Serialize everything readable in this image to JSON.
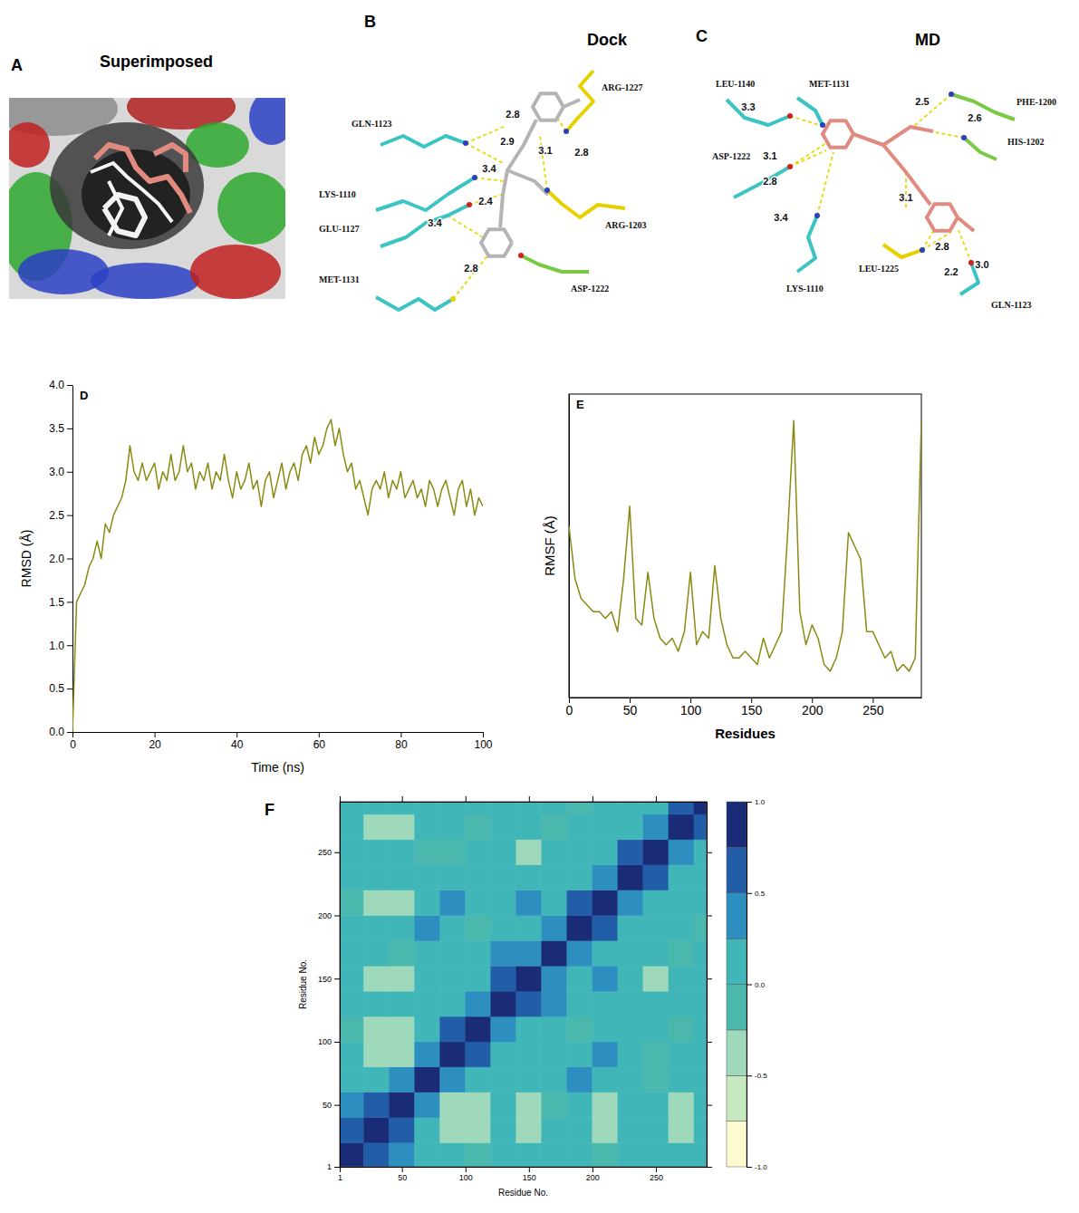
{
  "diagrams": [
    {
      "label": "A",
      "title": "Superimposed"
    },
    {
      "label": "B",
      "title": "Dock",
      "residues": [
        "GLN-1123",
        "LYS-1110",
        "GLU-1127",
        "MET-1131",
        "ARG-1227",
        "ARG-1203",
        "ASP-1222"
      ],
      "distances": [
        "2.8",
        "2.9",
        "3.4",
        "2.4",
        "3.4",
        "2.8",
        "3.1",
        "2.8"
      ]
    },
    {
      "label": "C",
      "title": "MD",
      "residues": [
        "LEU-1140",
        "MET-1131",
        "PHE-1200",
        "HIS-1202",
        "ASP-1222",
        "LYS-1110",
        "LEU-1225",
        "GLN-1123"
      ],
      "distances": [
        "3.3",
        "3.1",
        "2.8",
        "3.4",
        "2.5",
        "2.6",
        "3.1",
        "2.8",
        "2.2",
        "3.0"
      ]
    }
  ],
  "chart_data": [
    {
      "type": "line",
      "label": "D",
      "xlabel": "Time (ns)",
      "ylabel": "RMSD (Å)",
      "x": [
        0,
        1,
        2,
        3,
        4,
        5,
        6,
        7,
        8,
        9,
        10,
        11,
        12,
        13,
        14,
        15,
        16,
        17,
        18,
        19,
        20,
        21,
        22,
        23,
        24,
        25,
        26,
        27,
        28,
        29,
        30,
        31,
        32,
        33,
        34,
        35,
        36,
        37,
        38,
        39,
        40,
        41,
        42,
        43,
        44,
        45,
        46,
        47,
        48,
        49,
        50,
        51,
        52,
        53,
        54,
        55,
        56,
        57,
        58,
        59,
        60,
        61,
        62,
        63,
        64,
        65,
        66,
        67,
        68,
        69,
        70,
        71,
        72,
        73,
        74,
        75,
        76,
        77,
        78,
        79,
        80,
        81,
        82,
        83,
        84,
        85,
        86,
        87,
        88,
        89,
        90,
        91,
        92,
        93,
        94,
        95,
        96,
        97,
        98,
        99,
        100
      ],
      "series": [
        {
          "color": "#8a8a12",
          "values": [
            0.0,
            1.5,
            1.6,
            1.7,
            1.9,
            2.0,
            2.2,
            2.0,
            2.4,
            2.3,
            2.5,
            2.6,
            2.7,
            2.9,
            3.3,
            3.0,
            2.9,
            3.1,
            2.9,
            3.0,
            3.1,
            2.8,
            3.0,
            2.9,
            3.2,
            2.9,
            3.0,
            3.3,
            3.0,
            3.1,
            2.8,
            3.0,
            2.9,
            3.1,
            2.8,
            3.0,
            2.9,
            3.2,
            2.9,
            2.7,
            3.0,
            2.8,
            2.9,
            3.1,
            2.8,
            2.9,
            2.6,
            2.9,
            3.0,
            2.7,
            2.9,
            3.1,
            2.8,
            3.0,
            3.1,
            2.9,
            3.2,
            3.3,
            3.1,
            3.4,
            3.2,
            3.3,
            3.5,
            3.6,
            3.3,
            3.5,
            3.2,
            3.0,
            3.1,
            2.8,
            2.9,
            2.7,
            2.5,
            2.8,
            2.9,
            2.8,
            3.0,
            2.7,
            2.9,
            2.8,
            3.0,
            2.7,
            2.8,
            2.9,
            2.7,
            2.8,
            2.6,
            2.9,
            2.8,
            2.6,
            2.8,
            2.9,
            2.7,
            2.5,
            2.8,
            2.9,
            2.6,
            2.8,
            2.5,
            2.7,
            2.6
          ]
        }
      ],
      "xlim": [
        0,
        100
      ],
      "xticks": [
        0,
        20,
        40,
        60,
        80,
        100
      ],
      "ylim": [
        0,
        4
      ],
      "yticks": [
        {
          "value": 0,
          "label": "0.0"
        },
        {
          "value": 0.5,
          "label": "0.5"
        },
        {
          "value": 1,
          "label": "1.0"
        },
        {
          "value": 1.5,
          "label": "1.5"
        },
        {
          "value": 2,
          "label": "2.0"
        },
        {
          "value": 2.5,
          "label": "2.5"
        },
        {
          "value": 3,
          "label": "3.0"
        },
        {
          "value": 3.5,
          "label": "3.5"
        },
        {
          "value": 4,
          "label": "4.0"
        }
      ]
    },
    {
      "type": "line",
      "label": "E",
      "xlabel": "Residues",
      "ylabel": "RMSF (Å)",
      "tick_labels": "x",
      "x": [
        0,
        5,
        10,
        15,
        20,
        25,
        30,
        35,
        40,
        45,
        50,
        55,
        60,
        65,
        70,
        75,
        80,
        85,
        90,
        95,
        100,
        105,
        110,
        115,
        120,
        125,
        130,
        135,
        140,
        145,
        150,
        155,
        160,
        165,
        170,
        175,
        180,
        185,
        190,
        195,
        200,
        205,
        210,
        215,
        220,
        225,
        230,
        235,
        240,
        245,
        250,
        255,
        260,
        265,
        270,
        275,
        280,
        285,
        290
      ],
      "series": [
        {
          "color": "#8a8a12",
          "values": [
            2.6,
            1.8,
            1.5,
            1.4,
            1.3,
            1.3,
            1.2,
            1.3,
            1.0,
            1.8,
            2.9,
            1.2,
            1.1,
            1.9,
            1.2,
            0.9,
            0.8,
            0.9,
            0.7,
            1.0,
            1.9,
            0.8,
            1.0,
            0.9,
            2.0,
            1.2,
            0.8,
            0.6,
            0.6,
            0.7,
            0.6,
            0.5,
            0.9,
            0.6,
            0.8,
            1.0,
            2.5,
            4.2,
            1.3,
            0.8,
            1.1,
            0.9,
            0.5,
            0.4,
            0.6,
            1.0,
            2.5,
            2.3,
            2.1,
            1.0,
            1.0,
            0.8,
            0.6,
            0.7,
            0.4,
            0.5,
            0.4,
            0.6,
            4.2
          ]
        }
      ],
      "xlim": [
        0,
        290
      ],
      "xticks": [
        0,
        50,
        100,
        150,
        200,
        250
      ],
      "ylim": [
        0,
        4.6
      ]
    },
    {
      "type": "heatmap",
      "label": "F",
      "xlabel": "Residue No.",
      "ylabel": "Residue No.",
      "xbins": [
        1,
        20,
        40,
        60,
        80,
        100,
        120,
        140,
        160,
        180,
        200,
        220,
        240,
        260,
        280,
        290
      ],
      "ybins": [
        1,
        20,
        40,
        60,
        80,
        100,
        120,
        140,
        160,
        180,
        200,
        220,
        240,
        260,
        280,
        290
      ],
      "values": [
        [
          1.0,
          0.6,
          0.3,
          0.1,
          0.0,
          -0.1,
          0.1,
          0.0,
          0.1,
          0.0,
          -0.2,
          0.1,
          0.0,
          0.1,
          0.0
        ],
        [
          0.6,
          1.0,
          0.7,
          0.2,
          -0.3,
          -0.4,
          0.1,
          -0.3,
          0.0,
          0.2,
          -0.5,
          0.0,
          0.2,
          -0.3,
          0.1
        ],
        [
          0.3,
          0.7,
          1.0,
          0.4,
          -0.4,
          -0.3,
          0.0,
          -0.4,
          -0.2,
          0.1,
          -0.3,
          0.1,
          0.0,
          -0.4,
          0.0
        ],
        [
          0.1,
          0.2,
          0.4,
          1.0,
          0.3,
          0.1,
          0.2,
          0.0,
          0.1,
          0.3,
          0.0,
          0.2,
          -0.1,
          0.0,
          0.1
        ],
        [
          0.0,
          -0.3,
          -0.4,
          0.3,
          1.0,
          0.5,
          0.2,
          0.1,
          0.2,
          0.0,
          0.3,
          0.1,
          -0.2,
          0.1,
          0.0
        ],
        [
          -0.1,
          -0.4,
          -0.3,
          0.1,
          0.5,
          1.0,
          0.4,
          0.2,
          0.1,
          -0.1,
          0.2,
          0.0,
          0.1,
          -0.2,
          0.1
        ],
        [
          0.1,
          0.1,
          0.0,
          0.2,
          0.2,
          0.4,
          1.0,
          0.5,
          0.3,
          0.1,
          0.0,
          0.2,
          0.1,
          0.0,
          0.2
        ],
        [
          0.0,
          -0.3,
          -0.4,
          0.0,
          0.1,
          0.2,
          0.5,
          1.0,
          0.4,
          0.1,
          0.3,
          0.0,
          -0.3,
          0.1,
          0.0
        ],
        [
          0.1,
          0.0,
          -0.2,
          0.1,
          0.2,
          0.1,
          0.3,
          0.4,
          1.0,
          0.3,
          0.2,
          0.1,
          0.0,
          -0.1,
          0.1
        ],
        [
          0.0,
          0.2,
          0.1,
          0.3,
          0.0,
          -0.1,
          0.1,
          0.1,
          0.3,
          1.0,
          0.6,
          0.2,
          0.1,
          0.0,
          -0.2
        ],
        [
          -0.2,
          -0.5,
          -0.3,
          0.0,
          0.3,
          0.2,
          0.0,
          0.3,
          0.2,
          0.6,
          1.0,
          0.4,
          0.0,
          0.1,
          0.0
        ],
        [
          0.1,
          0.0,
          0.1,
          0.2,
          0.1,
          0.0,
          0.2,
          0.0,
          0.1,
          0.2,
          0.4,
          1.0,
          0.5,
          0.2,
          0.1
        ],
        [
          0.0,
          0.2,
          0.0,
          -0.1,
          -0.2,
          0.1,
          0.1,
          -0.3,
          0.0,
          0.1,
          0.0,
          0.5,
          1.0,
          0.4,
          0.2
        ],
        [
          0.1,
          -0.3,
          -0.4,
          0.0,
          0.1,
          -0.2,
          0.0,
          0.1,
          -0.1,
          0.0,
          0.1,
          0.2,
          0.4,
          1.0,
          0.5
        ],
        [
          0.0,
          0.1,
          0.0,
          0.1,
          0.0,
          0.1,
          0.2,
          0.0,
          0.1,
          -0.2,
          0.0,
          0.1,
          0.2,
          0.5,
          1.0
        ]
      ],
      "xlim": [
        1,
        290
      ],
      "xticks": [
        1,
        50,
        100,
        150,
        200,
        250
      ],
      "ylim": [
        1,
        290
      ],
      "yticks": [
        1,
        50,
        100,
        150,
        200,
        250
      ],
      "colors": [
        "#fcfbd0",
        "#c7e9c0",
        "#9ed9bb",
        "#4bb8ad",
        "#41b6b8",
        "#2c8fc0",
        "#225ea8",
        "#1a2c78"
      ],
      "colorbar": {
        "range": [
          -1,
          1
        ],
        "ticks": [
          {
            "value": 1,
            "label": "1.0"
          },
          {
            "value": 0.5,
            "label": "0.5"
          },
          {
            "value": 0,
            "label": "0.0"
          },
          {
            "value": -0.5,
            "label": "-0.5"
          },
          {
            "value": -1,
            "label": "-1.0"
          }
        ]
      }
    }
  ]
}
